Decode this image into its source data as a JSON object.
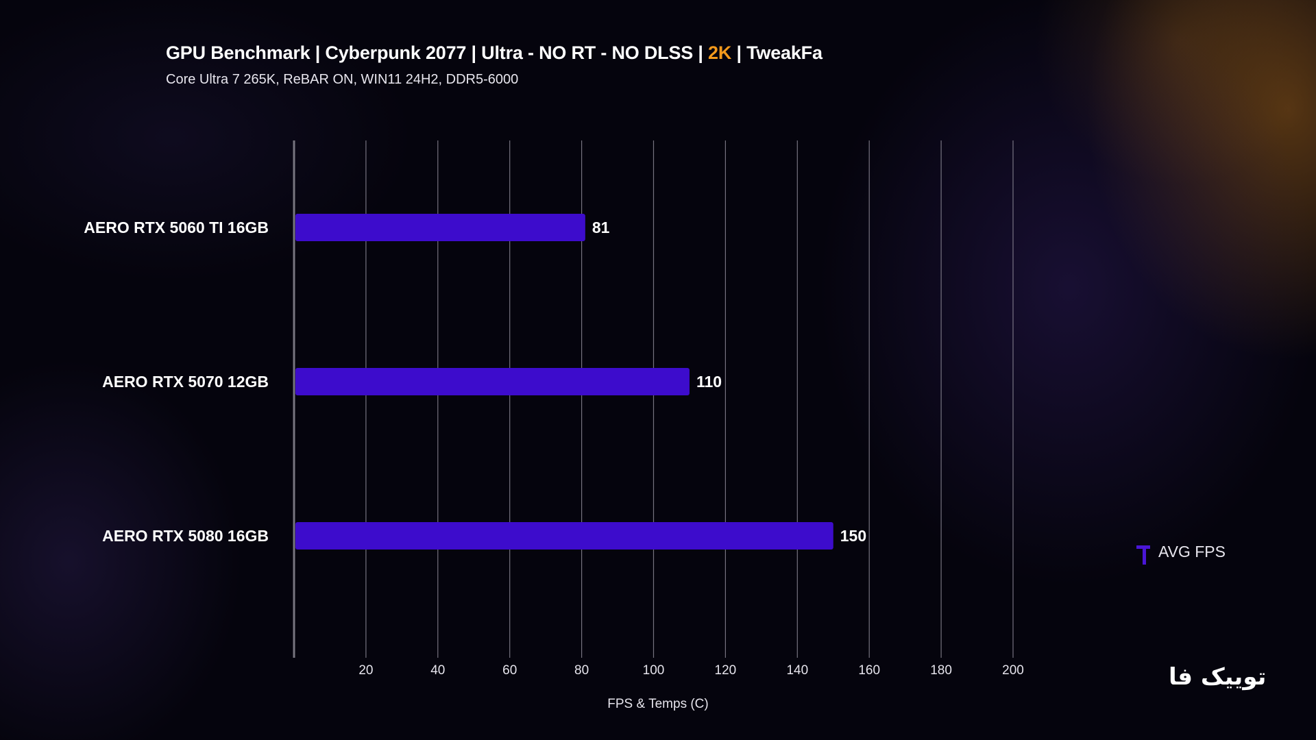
{
  "header": {
    "title_main": "GPU Benchmark | Cyberpunk 2077 | Ultra - NO RT - NO DLSS | ",
    "title_accent": "2K",
    "title_tail": " |  TweakFa",
    "subtitle": "Core Ultra 7 265K, ReBAR ON, WIN11 24H2, DDR5-6000"
  },
  "colors": {
    "bar": "#3d0ccc",
    "accent": "#f49a1c",
    "grid": "#8a8794",
    "axis": "#77757f",
    "text": "#ffffff"
  },
  "chart_data": {
    "type": "bar",
    "orientation": "horizontal",
    "categories": [
      "AERO RTX 5060 TI 16GB",
      "AERO RTX 5070 12GB",
      "AERO RTX 5080 16GB"
    ],
    "series": [
      {
        "name": "AVG FPS",
        "values": [
          81,
          110,
          150
        ]
      }
    ],
    "xlabel": "FPS & Temps (C)",
    "xlim": [
      0,
      200
    ],
    "xticks": [
      20,
      40,
      60,
      80,
      100,
      120,
      140,
      160,
      180,
      200
    ],
    "grid": true,
    "legend": "right"
  },
  "legend": {
    "label": "AVG FPS"
  },
  "logo": {
    "text": "توییک فا"
  }
}
